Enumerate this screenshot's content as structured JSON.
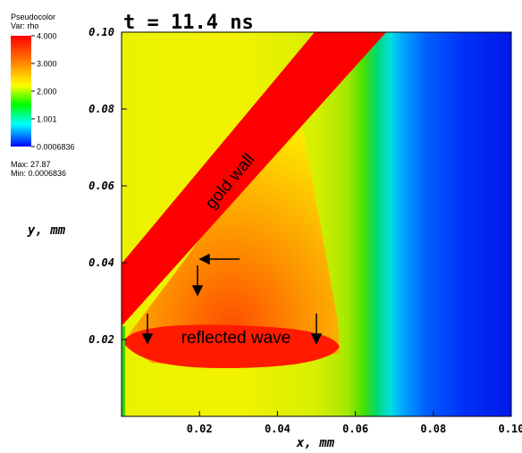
{
  "chart_data": {
    "type": "heatmap",
    "title": "t = 11.4 ns",
    "xlabel": "x, mm",
    "ylabel": "y, mm",
    "xlim": [
      0.0,
      0.1
    ],
    "ylim": [
      0.0,
      0.1
    ],
    "x_ticks": [
      "0.02",
      "0.04",
      "0.06",
      "0.08",
      "0.10"
    ],
    "y_ticks": [
      "0.02",
      "0.04",
      "0.06",
      "0.08",
      "0.10"
    ],
    "legend": {
      "heading": "Pseudocolor",
      "variable": "Var: rho",
      "levels": [
        "4.000",
        "3.000",
        "2.000",
        "1.001",
        "0.0006836"
      ],
      "max_text": "Max: 27.87",
      "min_text": "Min: 0.0006836",
      "colormap": [
        "#ff0000",
        "#ffff00",
        "#00ff00",
        "#00ffff",
        "#0000ff"
      ]
    },
    "annotations": {
      "wall": "gold wall",
      "wave": "reflected wave"
    }
  }
}
